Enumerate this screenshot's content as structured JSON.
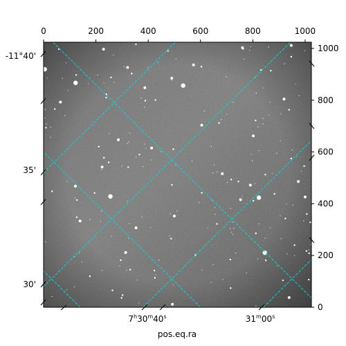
{
  "chart_data": {
    "type": "image",
    "image_kind": "astronomical grayscale star field with WCS coordinate grid overlay",
    "colormap": "gray",
    "pixel_axes": {
      "x": {
        "ticks": [
          0,
          200,
          400,
          600,
          800,
          1000
        ],
        "range": [
          0,
          1024
        ],
        "position": "top"
      },
      "y": {
        "ticks": [
          0,
          200,
          400,
          600,
          800,
          1000
        ],
        "range": [
          0,
          1024
        ],
        "position": "right"
      }
    },
    "world_axes": {
      "ra": {
        "label": "pos.eq.ra",
        "ticks": [
          {
            "h": "7",
            "m": "30",
            "s": "40",
            "value": "7h30m40s"
          },
          {
            "h": "",
            "m": "31",
            "s": "00",
            "value": "7h31m00s"
          }
        ]
      },
      "dec": {
        "ticks": [
          "-11°40'",
          "35'",
          "30'"
        ]
      }
    },
    "grid": {
      "color": "#00d8d8",
      "style": "dashed",
      "orientation": "rotated ~45°"
    },
    "grid_lines": {
      "ra": [
        [
          [
            -520,
            0
          ],
          [
            1544,
            2064
          ]
        ],
        [
          [
            -80,
            0
          ],
          [
            1984,
            2064
          ]
        ],
        [
          [
            380,
            0
          ],
          [
            2444,
            2064
          ]
        ],
        [
          [
            840,
            0
          ],
          [
            2904,
            2064
          ]
        ]
      ],
      "dec": [
        [
          [
            -300,
            0
          ],
          [
            -2364,
            2064
          ]
        ],
        [
          [
            140,
            0
          ],
          [
            -1924,
            2064
          ]
        ],
        [
          [
            600,
            0
          ],
          [
            -1464,
            2064
          ]
        ],
        [
          [
            1060,
            0
          ],
          [
            -1004,
            2064
          ]
        ]
      ]
    }
  }
}
